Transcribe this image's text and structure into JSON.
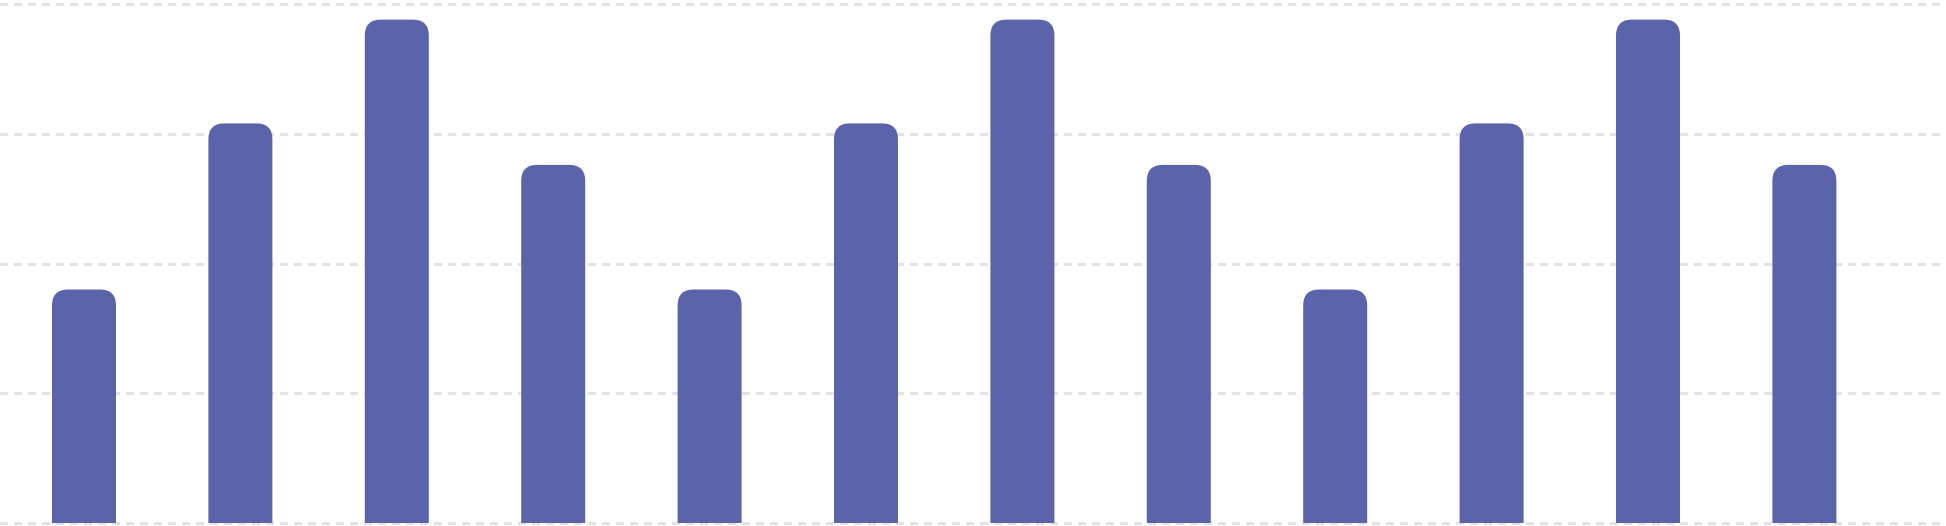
{
  "chart_data": {
    "type": "bar",
    "title": "",
    "xlabel": "",
    "ylabel": "",
    "categories": [
      "",
      "",
      "",
      "",
      "",
      "",
      "",
      "",
      "",
      "",
      "",
      ""
    ],
    "values": [
      45,
      77,
      97,
      69,
      45,
      77,
      97,
      69,
      45,
      77,
      97,
      69
    ],
    "ylim": [
      0,
      100
    ],
    "grid": true,
    "grid_style": "dashed",
    "grid_lines": [
      0,
      25,
      50,
      75,
      100
    ],
    "legend": "none",
    "colors": {
      "bar": "#5b64ab",
      "grid": "#e3e3e3",
      "background": "#ffffff"
    }
  }
}
